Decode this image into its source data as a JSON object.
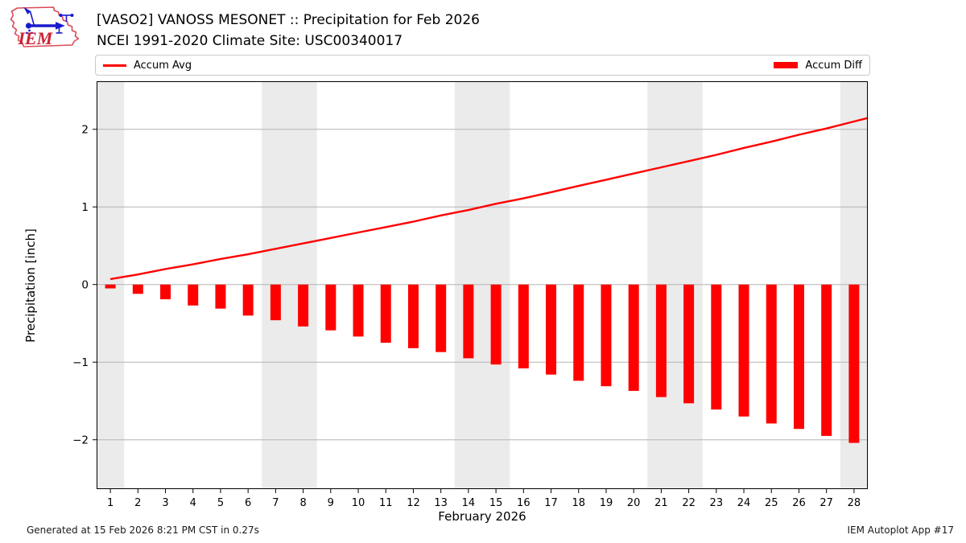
{
  "header": {
    "title_line1": "[VASO2] VANOSS MESONET :: Precipitation for Feb 2026",
    "title_line2": "NCEI 1991-2020 Climate Site: USC00340017",
    "logo_text": "IEM"
  },
  "legend": {
    "avg_label": "Accum Avg",
    "diff_label": "Accum Diff"
  },
  "colors": {
    "accent_red": "#ff0000",
    "weekend_band": "#ebebeb",
    "gridline": "#b3b3b3",
    "plot_border": "#000000"
  },
  "chart_data": {
    "type": "bar",
    "title": "[VASO2] VANOSS MESONET :: Precipitation for Feb 2026",
    "subtitle": "NCEI 1991-2020 Climate Site: USC00340017",
    "xlabel": "February 2026",
    "ylabel": "Precipitation [inch]",
    "x": [
      1,
      2,
      3,
      4,
      5,
      6,
      7,
      8,
      9,
      10,
      11,
      12,
      13,
      14,
      15,
      16,
      17,
      18,
      19,
      20,
      21,
      22,
      23,
      24,
      25,
      26,
      27,
      28
    ],
    "series": [
      {
        "name": "Accum Avg",
        "type": "line",
        "color": "#ff0000",
        "values": [
          0.07,
          0.13,
          0.2,
          0.26,
          0.33,
          0.39,
          0.46,
          0.53,
          0.6,
          0.67,
          0.74,
          0.81,
          0.89,
          0.96,
          1.04,
          1.11,
          1.19,
          1.27,
          1.35,
          1.43,
          1.51,
          1.59,
          1.67,
          1.76,
          1.84,
          1.93,
          2.01,
          2.1
        ]
      },
      {
        "name": "Accum Diff",
        "type": "bar",
        "color": "#ff0000",
        "values": [
          -0.05,
          -0.12,
          -0.19,
          -0.27,
          -0.31,
          -0.4,
          -0.46,
          -0.54,
          -0.59,
          -0.67,
          -0.75,
          -0.82,
          -0.87,
          -0.95,
          -1.03,
          -1.08,
          -1.16,
          -1.24,
          -1.31,
          -1.37,
          -1.45,
          -1.53,
          -1.61,
          -1.7,
          -1.79,
          -1.86,
          -1.95,
          -2.04
        ]
      }
    ],
    "ylim": [
      -2.63,
      2.62
    ],
    "yticks": [
      2,
      1,
      0,
      -1,
      -2
    ],
    "weekend_band_days": [
      [
        1,
        1
      ],
      [
        7,
        8
      ],
      [
        14,
        15
      ],
      [
        21,
        22
      ],
      [
        28,
        28
      ]
    ],
    "grid": "horizontal-only",
    "legend_position": "top"
  },
  "footer": {
    "generated": "Generated at 15 Feb 2026 8:21 PM CST in 0.27s",
    "app": "IEM Autoplot App #17"
  }
}
